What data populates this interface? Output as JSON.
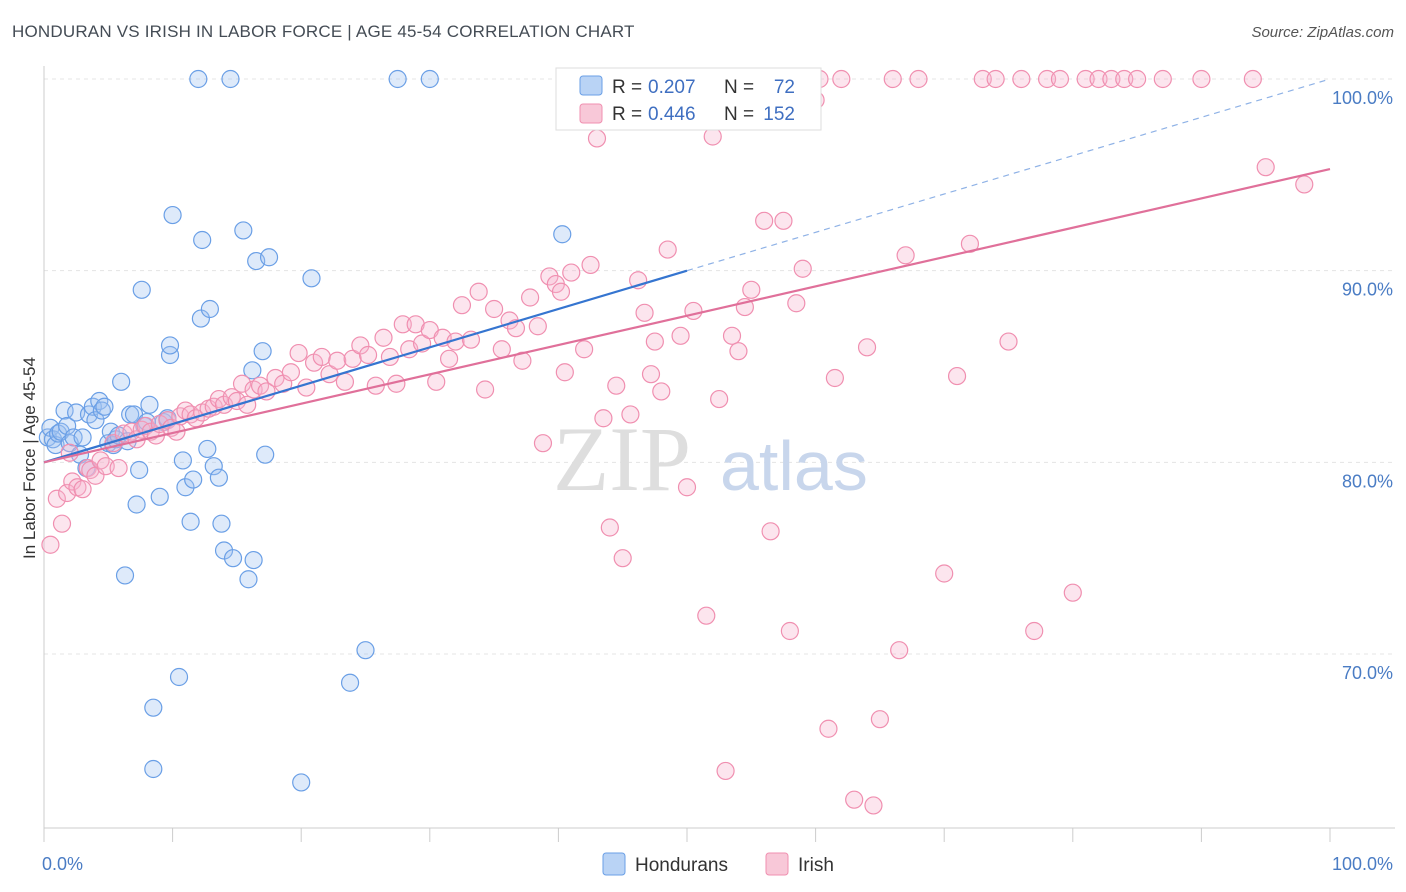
{
  "title": "HONDURAN VS IRISH IN LABOR FORCE | AGE 45-54 CORRELATION CHART",
  "source": "Source: ZipAtlas.com",
  "watermark": {
    "zip": "ZIP",
    "atlas": "atlas"
  },
  "legend": {
    "r_label": "R =",
    "n_label": "N =",
    "rows": [
      {
        "r": "0.207",
        "n": "72"
      },
      {
        "r": "0.446",
        "n": "152"
      }
    ]
  },
  "chart_data": {
    "type": "scatter",
    "title": "HONDURAN VS IRISH IN LABOR FORCE | AGE 45-54 CORRELATION CHART",
    "xlabel": "",
    "ylabel": "In Labor Force | Age 45-54",
    "xlim": [
      0,
      100
    ],
    "ylim": [
      61.5,
      101.5
    ],
    "x_tick_labels": [
      "0.0%",
      "100.0%"
    ],
    "y_ticks": [
      70,
      80,
      90,
      100
    ],
    "y_tick_labels": [
      "70.0%",
      "80.0%",
      "90.0%",
      "100.0%"
    ],
    "grid": true,
    "legend_position": "top-center",
    "colors": {
      "Hondurans": "#6a9fe6",
      "Irish": "#f08fb0",
      "honduran_line": "#3575d0",
      "irish_line": "#e0709a"
    },
    "series": [
      {
        "name": "Hondurans",
        "r": 0.207,
        "n": 72,
        "trend": {
          "x0": 0,
          "y0": 80.0,
          "x1": 50,
          "y1": 90.0,
          "dash_to_x": 100,
          "dash_to_y": 100.0
        },
        "points": [
          [
            0.3,
            81.3
          ],
          [
            0.5,
            81.8
          ],
          [
            0.7,
            81.2
          ],
          [
            0.9,
            80.9
          ],
          [
            1.1,
            81.5
          ],
          [
            1.3,
            81.6
          ],
          [
            1.6,
            82.7
          ],
          [
            1.8,
            81.9
          ],
          [
            2.0,
            81.0
          ],
          [
            2.3,
            81.3
          ],
          [
            2.5,
            82.6
          ],
          [
            2.8,
            80.4
          ],
          [
            3.0,
            81.3
          ],
          [
            3.3,
            79.7
          ],
          [
            3.5,
            82.5
          ],
          [
            3.8,
            82.9
          ],
          [
            4.0,
            82.2
          ],
          [
            4.3,
            83.2
          ],
          [
            4.5,
            82.7
          ],
          [
            4.7,
            82.9
          ],
          [
            5.0,
            81.0
          ],
          [
            5.2,
            81.6
          ],
          [
            5.4,
            80.9
          ],
          [
            5.6,
            81.2
          ],
          [
            5.8,
            81.4
          ],
          [
            6.0,
            84.2
          ],
          [
            6.3,
            74.1
          ],
          [
            6.5,
            81.1
          ],
          [
            6.7,
            82.5
          ],
          [
            7.0,
            82.5
          ],
          [
            7.2,
            77.8
          ],
          [
            7.4,
            79.6
          ],
          [
            7.6,
            89.0
          ],
          [
            7.8,
            81.9
          ],
          [
            8.0,
            82.1
          ],
          [
            8.2,
            83.0
          ],
          [
            8.5,
            67.2
          ],
          [
            8.5,
            64.0
          ],
          [
            9.0,
            78.2
          ],
          [
            9.3,
            82.1
          ],
          [
            9.6,
            82.2
          ],
          [
            9.6,
            82.3
          ],
          [
            9.8,
            85.6
          ],
          [
            9.8,
            86.1
          ],
          [
            10.0,
            92.9
          ],
          [
            10.5,
            68.8
          ],
          [
            10.8,
            80.1
          ],
          [
            11.0,
            78.7
          ],
          [
            11.4,
            76.9
          ],
          [
            11.6,
            79.1
          ],
          [
            12.0,
            100.0
          ],
          [
            12.2,
            87.5
          ],
          [
            12.3,
            91.6
          ],
          [
            12.7,
            80.7
          ],
          [
            12.9,
            88.0
          ],
          [
            13.2,
            79.8
          ],
          [
            13.6,
            79.2
          ],
          [
            13.8,
            76.8
          ],
          [
            14.0,
            75.4
          ],
          [
            14.5,
            100.0
          ],
          [
            14.7,
            75.0
          ],
          [
            15.5,
            92.1
          ],
          [
            15.9,
            73.9
          ],
          [
            16.2,
            84.8
          ],
          [
            16.3,
            74.9
          ],
          [
            16.5,
            90.5
          ],
          [
            17.0,
            85.8
          ],
          [
            17.2,
            80.4
          ],
          [
            17.5,
            90.7
          ],
          [
            20.0,
            63.3
          ],
          [
            20.8,
            89.6
          ],
          [
            23.8,
            68.5
          ],
          [
            25.0,
            70.2
          ],
          [
            27.5,
            100.0
          ],
          [
            30.0,
            100.0
          ],
          [
            40.3,
            91.9
          ]
        ]
      },
      {
        "name": "Irish",
        "r": 0.446,
        "n": 152,
        "trend": {
          "x0": 0,
          "y0": 80.0,
          "x1": 100,
          "y1": 95.3
        },
        "points": [
          [
            0.5,
            75.7
          ],
          [
            1.0,
            78.1
          ],
          [
            1.4,
            76.8
          ],
          [
            1.8,
            78.4
          ],
          [
            2.0,
            80.5
          ],
          [
            2.2,
            79.0
          ],
          [
            2.6,
            78.7
          ],
          [
            3.0,
            78.6
          ],
          [
            3.4,
            79.7
          ],
          [
            3.6,
            79.6
          ],
          [
            4.0,
            79.3
          ],
          [
            4.4,
            80.1
          ],
          [
            4.8,
            79.8
          ],
          [
            5.4,
            81.0
          ],
          [
            5.8,
            79.7
          ],
          [
            6.2,
            81.5
          ],
          [
            6.8,
            81.6
          ],
          [
            7.2,
            81.2
          ],
          [
            7.6,
            81.7
          ],
          [
            7.9,
            81.9
          ],
          [
            8.3,
            81.6
          ],
          [
            8.7,
            81.4
          ],
          [
            9.0,
            82.0
          ],
          [
            9.6,
            82.2
          ],
          [
            9.9,
            81.8
          ],
          [
            10.3,
            81.6
          ],
          [
            10.6,
            82.4
          ],
          [
            11.0,
            82.7
          ],
          [
            11.4,
            82.5
          ],
          [
            11.8,
            82.3
          ],
          [
            12.3,
            82.6
          ],
          [
            12.8,
            82.8
          ],
          [
            13.2,
            82.9
          ],
          [
            13.6,
            83.3
          ],
          [
            14.0,
            83.0
          ],
          [
            14.6,
            83.4
          ],
          [
            15.0,
            83.2
          ],
          [
            15.4,
            84.1
          ],
          [
            15.8,
            83.0
          ],
          [
            16.3,
            83.8
          ],
          [
            16.8,
            84.0
          ],
          [
            17.3,
            83.7
          ],
          [
            18.0,
            84.4
          ],
          [
            18.6,
            84.1
          ],
          [
            19.2,
            84.7
          ],
          [
            19.8,
            85.7
          ],
          [
            20.4,
            83.9
          ],
          [
            21.0,
            85.2
          ],
          [
            21.6,
            85.5
          ],
          [
            22.2,
            84.6
          ],
          [
            22.8,
            85.3
          ],
          [
            23.4,
            84.2
          ],
          [
            24.0,
            85.4
          ],
          [
            24.6,
            86.1
          ],
          [
            25.2,
            85.6
          ],
          [
            25.8,
            84.0
          ],
          [
            26.4,
            86.5
          ],
          [
            26.9,
            85.5
          ],
          [
            27.4,
            84.1
          ],
          [
            27.9,
            87.2
          ],
          [
            28.4,
            85.9
          ],
          [
            28.9,
            87.2
          ],
          [
            29.4,
            86.2
          ],
          [
            30.0,
            86.9
          ],
          [
            30.5,
            84.2
          ],
          [
            31.0,
            86.5
          ],
          [
            31.5,
            85.4
          ],
          [
            32.0,
            86.3
          ],
          [
            32.5,
            88.2
          ],
          [
            33.2,
            86.4
          ],
          [
            33.8,
            88.9
          ],
          [
            34.3,
            83.8
          ],
          [
            35.0,
            88.0
          ],
          [
            35.6,
            85.9
          ],
          [
            36.2,
            87.4
          ],
          [
            36.7,
            87.0
          ],
          [
            37.2,
            85.3
          ],
          [
            37.8,
            88.6
          ],
          [
            38.4,
            87.1
          ],
          [
            38.8,
            81.0
          ],
          [
            39.3,
            89.7
          ],
          [
            39.8,
            89.3
          ],
          [
            40.2,
            88.9
          ],
          [
            40.5,
            84.7
          ],
          [
            41.0,
            89.9
          ],
          [
            42.0,
            85.9
          ],
          [
            42.5,
            90.3
          ],
          [
            43.0,
            96.9
          ],
          [
            43.5,
            82.3
          ],
          [
            44.0,
            76.6
          ],
          [
            44.5,
            84.0
          ],
          [
            45.0,
            75.0
          ],
          [
            45.6,
            82.5
          ],
          [
            46.2,
            89.5
          ],
          [
            46.7,
            87.8
          ],
          [
            47.2,
            84.6
          ],
          [
            47.5,
            86.3
          ],
          [
            48.0,
            83.7
          ],
          [
            48.5,
            91.1
          ],
          [
            49.0,
            100.0
          ],
          [
            49.5,
            86.6
          ],
          [
            50.0,
            78.7
          ],
          [
            50.5,
            87.9
          ],
          [
            51.0,
            100.0
          ],
          [
            51.5,
            72.0
          ],
          [
            52.0,
            97.0
          ],
          [
            52.5,
            83.3
          ],
          [
            53.0,
            63.9
          ],
          [
            53.5,
            86.6
          ],
          [
            54.0,
            85.8
          ],
          [
            54.5,
            88.1
          ],
          [
            55.0,
            89.0
          ],
          [
            56.0,
            92.6
          ],
          [
            56.5,
            76.4
          ],
          [
            57.0,
            100.0
          ],
          [
            57.5,
            92.6
          ],
          [
            58.0,
            71.2
          ],
          [
            58.5,
            88.3
          ],
          [
            59.0,
            90.1
          ],
          [
            59.5,
            100.0
          ],
          [
            60.0,
            98.9
          ],
          [
            60.3,
            100.0
          ],
          [
            61.0,
            66.1
          ],
          [
            61.5,
            84.4
          ],
          [
            62.0,
            100.0
          ],
          [
            63.0,
            62.4
          ],
          [
            64.0,
            86.0
          ],
          [
            64.5,
            62.1
          ],
          [
            65.0,
            66.6
          ],
          [
            66.0,
            100.0
          ],
          [
            66.5,
            70.2
          ],
          [
            67.0,
            90.8
          ],
          [
            68.0,
            100.0
          ],
          [
            70.0,
            74.2
          ],
          [
            71.0,
            84.5
          ],
          [
            72.0,
            91.4
          ],
          [
            73.0,
            100.0
          ],
          [
            74.0,
            100.0
          ],
          [
            75.0,
            86.3
          ],
          [
            76.0,
            100.0
          ],
          [
            77.0,
            71.2
          ],
          [
            78.0,
            100.0
          ],
          [
            79.0,
            100.0
          ],
          [
            80.0,
            73.2
          ],
          [
            81.0,
            100.0
          ],
          [
            82.0,
            100.0
          ],
          [
            83.0,
            100.0
          ],
          [
            84.0,
            100.0
          ],
          [
            85.0,
            100.0
          ],
          [
            87.0,
            100.0
          ],
          [
            90.0,
            100.0
          ],
          [
            94.0,
            100.0
          ],
          [
            95.0,
            95.4
          ],
          [
            98.0,
            94.5
          ]
        ]
      }
    ]
  },
  "bottom_legend": [
    "Hondurans",
    "Irish"
  ]
}
